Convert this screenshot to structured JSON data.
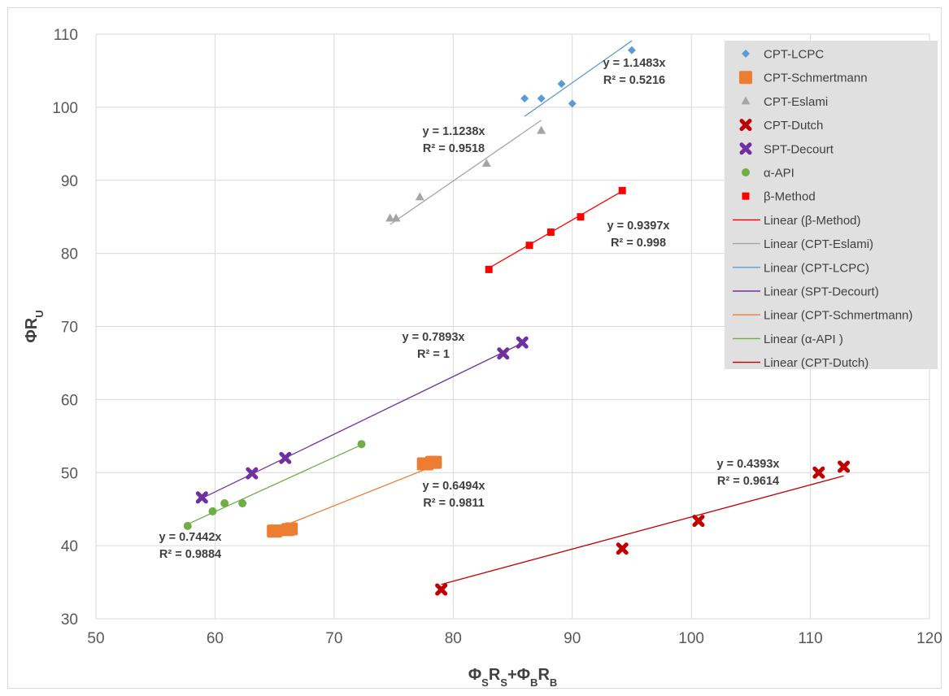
{
  "chart_data": {
    "type": "scatter",
    "xlim": [
      50,
      120
    ],
    "ylim": [
      30,
      110
    ],
    "x_ticks": [
      50,
      60,
      70,
      80,
      90,
      100,
      110,
      120
    ],
    "y_ticks": [
      30,
      40,
      50,
      60,
      70,
      80,
      90,
      100,
      110
    ],
    "xlabel": {
      "parts": [
        {
          "t": "Φ"
        },
        {
          "t": "S",
          "sub": true
        },
        {
          "t": "R"
        },
        {
          "t": "S",
          "sub": true
        },
        {
          "t": "+Φ"
        },
        {
          "t": "B",
          "sub": true
        },
        {
          "t": "R"
        },
        {
          "t": "B",
          "sub": true
        }
      ]
    },
    "ylabel": {
      "parts": [
        {
          "t": "ΦR"
        },
        {
          "t": "U",
          "sub": true
        }
      ]
    },
    "grid": true,
    "legend_position": "top-right",
    "series": [
      {
        "name": "CPT-LCPC",
        "marker": "diamond",
        "color": "#5B9BD5",
        "points": [
          [
            86.0,
            101.2
          ],
          [
            87.4,
            101.2
          ],
          [
            89.1,
            103.2
          ],
          [
            90.0,
            100.5
          ],
          [
            95.0,
            107.8
          ]
        ]
      },
      {
        "name": "CPT-Schmertmann",
        "marker": "square-big",
        "color": "#ED7D31",
        "points": [
          [
            64.9,
            42.0
          ],
          [
            65.1,
            42.0
          ],
          [
            66.1,
            42.2
          ],
          [
            66.4,
            42.3
          ],
          [
            77.5,
            51.2
          ],
          [
            77.8,
            51.2
          ],
          [
            78.2,
            51.4
          ],
          [
            78.5,
            51.4
          ]
        ]
      },
      {
        "name": "CPT-Eslami",
        "marker": "triangle",
        "color": "#A5A5A5",
        "points": [
          [
            74.7,
            84.8
          ],
          [
            75.2,
            84.8
          ],
          [
            77.2,
            87.7
          ],
          [
            82.8,
            92.3
          ],
          [
            87.4,
            96.8
          ]
        ]
      },
      {
        "name": "CPT-Dutch",
        "marker": "x",
        "color": "#C00000",
        "points": [
          [
            79.0,
            34.0
          ],
          [
            94.2,
            39.6
          ],
          [
            100.6,
            43.4
          ],
          [
            110.7,
            50.0
          ],
          [
            112.8,
            50.8
          ]
        ]
      },
      {
        "name": "SPT-Decourt",
        "marker": "x",
        "color": "#7030A0",
        "points": [
          [
            58.9,
            46.6
          ],
          [
            63.1,
            49.9
          ],
          [
            65.9,
            52.0
          ],
          [
            84.2,
            66.3
          ],
          [
            85.8,
            67.8
          ]
        ]
      },
      {
        "name": "α-API",
        "marker": "circle",
        "color": "#70AD47",
        "points": [
          [
            57.7,
            42.7
          ],
          [
            59.8,
            44.7
          ],
          [
            60.8,
            45.8
          ],
          [
            62.3,
            45.8
          ],
          [
            72.3,
            53.9
          ]
        ]
      },
      {
        "name": "β-Method",
        "marker": "square",
        "color": "#FF0000",
        "points": [
          [
            83.0,
            77.8
          ],
          [
            86.4,
            81.1
          ],
          [
            88.2,
            82.9
          ],
          [
            90.7,
            85.0
          ],
          [
            94.2,
            88.6
          ]
        ]
      }
    ],
    "trendlines": [
      {
        "name": "Linear (β-Method)",
        "color": "#FF0000",
        "slope": 0.9397,
        "x": [
          83.0,
          94.3
        ],
        "equation": "y = 0.9397x",
        "r2": "R² = 0.998"
      },
      {
        "name": "Linear (CPT-Eslami)",
        "color": "#A5A5A5",
        "slope": 1.1238,
        "x": [
          74.7,
          87.4
        ],
        "equation": "y = 1.1238x",
        "r2": "R² = 0.9518"
      },
      {
        "name": "Linear (CPT-LCPC)",
        "color": "#5B9BD5",
        "slope": 1.1483,
        "x": [
          86.0,
          95.0
        ],
        "equation": "y = 1.1483x",
        "r2": "R² = 0.5216"
      },
      {
        "name": "Linear (SPT-Decourt)",
        "color": "#7030A0",
        "slope": 0.7893,
        "x": [
          58.9,
          85.8
        ],
        "equation": "y = 0.7893x",
        "r2": "R² = 1"
      },
      {
        "name": "Linear (CPT-Schmertmann)",
        "color": "#ED7D31",
        "slope": 0.6494,
        "x": [
          64.9,
          78.5
        ],
        "equation": "y = 0.6494x",
        "r2": "R² = 0.9811"
      },
      {
        "name": "Linear (α-API )",
        "color": "#70AD47",
        "slope": 0.7442,
        "x": [
          57.7,
          72.3
        ],
        "equation": "y = 0.7442x",
        "r2": "R² = 0.9884"
      },
      {
        "name": "Linear (CPT-Dutch)",
        "color": "#C00000",
        "slope": 0.4393,
        "x": [
          79.0,
          112.8
        ],
        "equation": "y = 0.4393x",
        "r2": "R² = 0.9614"
      }
    ]
  }
}
